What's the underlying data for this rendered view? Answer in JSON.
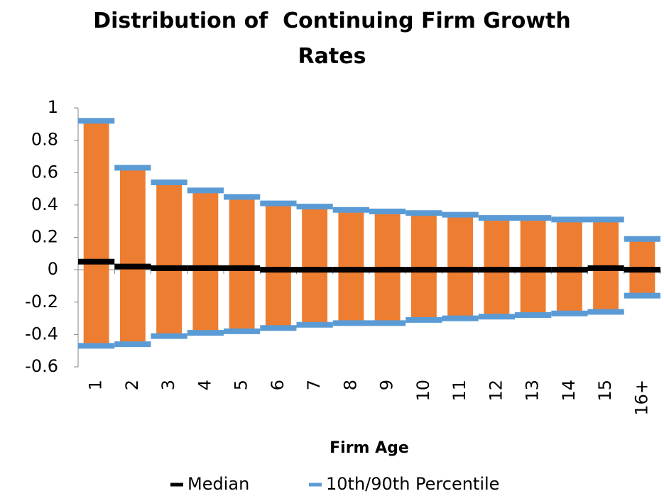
{
  "chart_data": {
    "type": "highlow",
    "title": "Distribution of  Continuing Firm Growth Rates",
    "x_label": "Firm Age",
    "categories": [
      "1",
      "2",
      "3",
      "4",
      "5",
      "6",
      "7",
      "8",
      "9",
      "10",
      "11",
      "12",
      "13",
      "14",
      "15",
      "16+"
    ],
    "bar_color": "#ed7d31",
    "series": [
      {
        "name": "Median",
        "color": "#000000",
        "values": [
          0.05,
          0.02,
          0.01,
          0.01,
          0.01,
          0.0,
          0.0,
          0.0,
          0.0,
          0.0,
          0.0,
          0.0,
          0.0,
          0.0,
          0.01,
          0.0
        ]
      },
      {
        "name": "10th/90th Percentile",
        "color": "#5b9bd5",
        "values": [
          0.92,
          0.63,
          0.54,
          0.49,
          0.45,
          0.41,
          0.39,
          0.37,
          0.36,
          0.35,
          0.34,
          0.32,
          0.32,
          0.31,
          0.31,
          0.19
        ],
        "low_values": [
          -0.47,
          -0.46,
          -0.41,
          -0.39,
          -0.38,
          -0.36,
          -0.34,
          -0.33,
          -0.33,
          -0.31,
          -0.3,
          -0.29,
          -0.28,
          -0.27,
          -0.26,
          -0.16
        ]
      }
    ],
    "ylim": [
      -0.6,
      1
    ],
    "yticks": [
      -0.6,
      -0.4,
      -0.2,
      0,
      0.2,
      0.4,
      0.6,
      0.8,
      1
    ]
  }
}
